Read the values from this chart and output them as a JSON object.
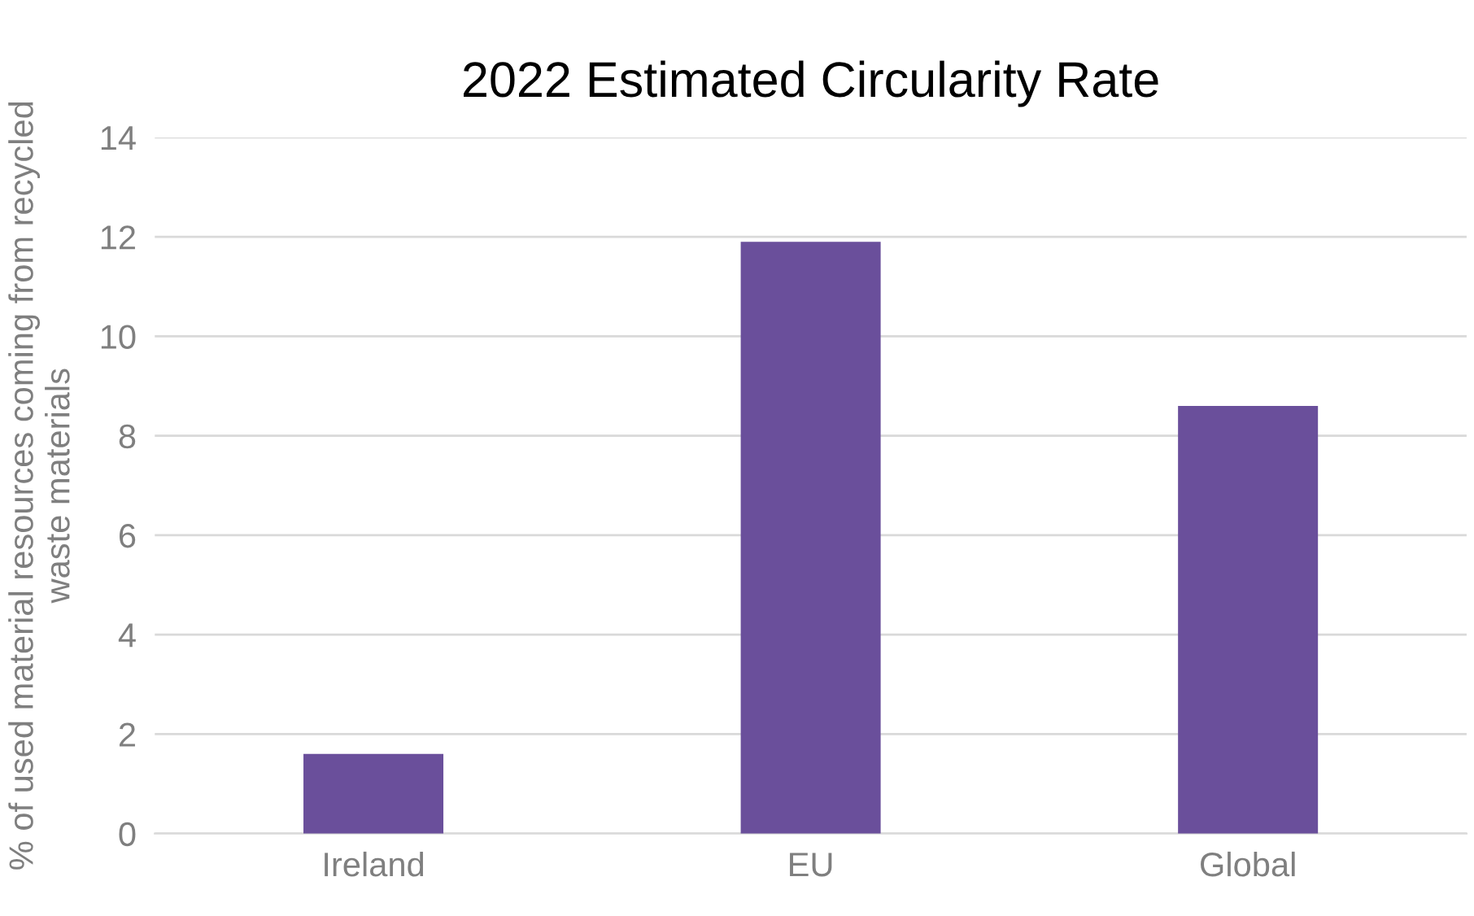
{
  "chart_data": {
    "type": "bar",
    "title": "2022 Estimated Circularity Rate",
    "ylabel": "% of used material resources coming from recycled waste materials",
    "categories": [
      "Ireland",
      "EU",
      "Global"
    ],
    "values": [
      1.6,
      11.9,
      8.6
    ],
    "color": "#6a4f9b",
    "ylim": [
      0,
      14
    ],
    "yticks": [
      0,
      2,
      4,
      6,
      8,
      10,
      12,
      14
    ],
    "grid": "y"
  }
}
